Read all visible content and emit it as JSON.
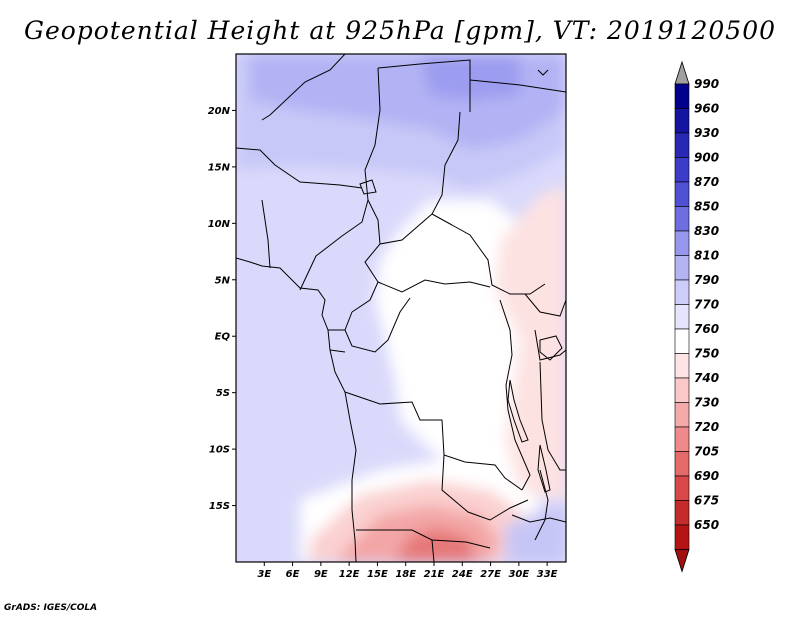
{
  "title": "Geopotential Height at 925hPa [gpm], VT: 2019120500",
  "credit": "GrADS: IGES/COLA",
  "map": {
    "lon_range": [
      0,
      35
    ],
    "lat_range": [
      -20,
      25
    ],
    "lat_ticks": [
      {
        "value": 20,
        "label": "20N"
      },
      {
        "value": 15,
        "label": "15N"
      },
      {
        "value": 10,
        "label": "10N"
      },
      {
        "value": 5,
        "label": "5N"
      },
      {
        "value": 0,
        "label": "EQ"
      },
      {
        "value": -5,
        "label": "5S"
      },
      {
        "value": -10,
        "label": "10S"
      },
      {
        "value": -15,
        "label": "15S"
      }
    ],
    "lon_ticks": [
      {
        "value": 3,
        "label": "3E"
      },
      {
        "value": 6,
        "label": "6E"
      },
      {
        "value": 9,
        "label": "9E"
      },
      {
        "value": 12,
        "label": "12E"
      },
      {
        "value": 15,
        "label": "15E"
      },
      {
        "value": 18,
        "label": "18E"
      },
      {
        "value": 21,
        "label": "21E"
      },
      {
        "value": 24,
        "label": "24E"
      },
      {
        "value": 27,
        "label": "27E"
      },
      {
        "value": 30,
        "label": "30E"
      },
      {
        "value": 33,
        "label": "33E"
      }
    ]
  },
  "colorbar": {
    "levels": [
      {
        "label": "990",
        "color": "#00008c"
      },
      {
        "label": "960",
        "color": "#1414a0"
      },
      {
        "label": "930",
        "color": "#2828b4"
      },
      {
        "label": "900",
        "color": "#3c3cc8"
      },
      {
        "label": "870",
        "color": "#5050d2"
      },
      {
        "label": "850",
        "color": "#6e6ee1"
      },
      {
        "label": "830",
        "color": "#9696ef"
      },
      {
        "label": "810",
        "color": "#b4b4f5"
      },
      {
        "label": "790",
        "color": "#cdcdfa"
      },
      {
        "label": "770",
        "color": "#e4e4fc"
      },
      {
        "label": "760",
        "color": "#ffffff"
      },
      {
        "label": "750",
        "color": "#fde3e3"
      },
      {
        "label": "740",
        "color": "#fac8c8"
      },
      {
        "label": "730",
        "color": "#f5aaaa"
      },
      {
        "label": "720",
        "color": "#ee8a8a"
      },
      {
        "label": "705",
        "color": "#e56a6a"
      },
      {
        "label": "690",
        "color": "#d84848"
      },
      {
        "label": "675",
        "color": "#c42c2c"
      },
      {
        "label": "650",
        "color": "#b41414"
      }
    ],
    "top_arrow_color": "#a0a0a0",
    "bottom_arrow_color": "#a01010"
  }
}
